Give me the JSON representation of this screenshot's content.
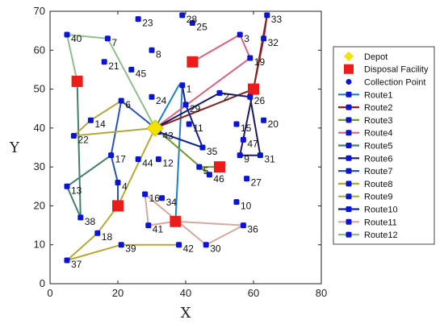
{
  "chart_data": {
    "type": "scatter",
    "xlabel": "X",
    "ylabel": "Y",
    "xlim": [
      0,
      80
    ],
    "ylim": [
      0,
      70
    ],
    "xticks": [
      "0",
      "20",
      "40",
      "60",
      "80"
    ],
    "yticks": [
      "0",
      "10",
      "20",
      "30",
      "40",
      "50",
      "60",
      "70"
    ],
    "grid": false,
    "legend_position": "right",
    "depot": {
      "label": "Depot",
      "x": 31,
      "y": 40,
      "color": "#f2e200"
    },
    "disposal_facilities": {
      "label": "Disposal Facility",
      "color": "#ee1b1b",
      "points": [
        [
          8,
          52
        ],
        [
          42,
          57
        ],
        [
          60,
          50
        ],
        [
          50,
          30
        ],
        [
          20,
          20
        ],
        [
          37,
          16
        ]
      ]
    },
    "collection_points": {
      "label": "Collection Point",
      "color": "#0a14d6",
      "points": [
        {
          "id": "1",
          "x": 39,
          "y": 51
        },
        {
          "id": "2",
          "x": 50,
          "y": 49
        },
        {
          "id": "3",
          "x": 56,
          "y": 64
        },
        {
          "id": "4",
          "x": 20,
          "y": 26
        },
        {
          "id": "5",
          "x": 44,
          "y": 30
        },
        {
          "id": "6",
          "x": 21,
          "y": 47
        },
        {
          "id": "7",
          "x": 17,
          "y": 63
        },
        {
          "id": "8",
          "x": 30,
          "y": 60
        },
        {
          "id": "9",
          "x": 56,
          "y": 33
        },
        {
          "id": "10",
          "x": 55,
          "y": 21
        },
        {
          "id": "11",
          "x": 41,
          "y": 41
        },
        {
          "id": "12",
          "x": 32,
          "y": 32
        },
        {
          "id": "13",
          "x": 5,
          "y": 25
        },
        {
          "id": "14",
          "x": 12,
          "y": 42
        },
        {
          "id": "15",
          "x": 55,
          "y": 41
        },
        {
          "id": "16",
          "x": 28,
          "y": 23
        },
        {
          "id": "17",
          "x": 18,
          "y": 33
        },
        {
          "id": "18",
          "x": 14,
          "y": 13
        },
        {
          "id": "19",
          "x": 59,
          "y": 58
        },
        {
          "id": "20",
          "x": 63,
          "y": 42
        },
        {
          "id": "21",
          "x": 16,
          "y": 57
        },
        {
          "id": "22",
          "x": 7,
          "y": 38
        },
        {
          "id": "23",
          "x": 26,
          "y": 68
        },
        {
          "id": "24",
          "x": 30,
          "y": 48
        },
        {
          "id": "25",
          "x": 42,
          "y": 67
        },
        {
          "id": "26",
          "x": 59,
          "y": 48
        },
        {
          "id": "27",
          "x": 58,
          "y": 27
        },
        {
          "id": "28",
          "x": 39,
          "y": 69
        },
        {
          "id": "29",
          "x": 40,
          "y": 46
        },
        {
          "id": "30",
          "x": 46,
          "y": 10
        },
        {
          "id": "31",
          "x": 62,
          "y": 33
        },
        {
          "id": "32",
          "x": 63,
          "y": 63
        },
        {
          "id": "33",
          "x": 64,
          "y": 69
        },
        {
          "id": "34",
          "x": 33,
          "y": 22
        },
        {
          "id": "35",
          "x": 45,
          "y": 35
        },
        {
          "id": "36",
          "x": 57,
          "y": 15
        },
        {
          "id": "37",
          "x": 5,
          "y": 6
        },
        {
          "id": "38",
          "x": 9,
          "y": 17
        },
        {
          "id": "39",
          "x": 21,
          "y": 10
        },
        {
          "id": "40",
          "x": 5,
          "y": 64
        },
        {
          "id": "41",
          "x": 29,
          "y": 15
        },
        {
          "id": "42",
          "x": 38,
          "y": 10
        },
        {
          "id": "43",
          "x": 32,
          "y": 39
        },
        {
          "id": "44",
          "x": 26,
          "y": 32
        },
        {
          "id": "45",
          "x": 24,
          "y": 55
        },
        {
          "id": "46",
          "x": 47,
          "y": 28
        },
        {
          "id": "47",
          "x": 57,
          "y": 37
        }
      ]
    },
    "series": [
      {
        "name": "Route1",
        "color": "#1f7fc6",
        "path": [
          [
            31,
            40
          ],
          [
            38,
            51
          ],
          [
            39,
            51
          ],
          [
            37,
            16
          ]
        ]
      },
      {
        "name": "Route2",
        "color": "#8a2020",
        "path": [
          [
            31,
            40
          ],
          [
            60,
            50
          ],
          [
            63,
            63
          ],
          [
            64,
            69
          ],
          [
            60,
            50
          ]
        ]
      },
      {
        "name": "Route3",
        "color": "#6f9a2a",
        "path": [
          [
            31,
            40
          ],
          [
            47,
            28
          ],
          [
            44,
            30
          ],
          [
            50,
            30
          ]
        ]
      },
      {
        "name": "Route4",
        "color": "#e0607e",
        "path": [
          [
            31,
            40
          ],
          [
            59,
            58
          ],
          [
            56,
            64
          ],
          [
            42,
            57
          ]
        ]
      },
      {
        "name": "Route5",
        "color": "#40806b",
        "path": [
          [
            8,
            52
          ],
          [
            9,
            17
          ],
          [
            5,
            25
          ],
          [
            18,
            33
          ]
        ]
      },
      {
        "name": "Route6",
        "color": "#1a1a60",
        "path": [
          [
            31,
            40
          ],
          [
            50,
            49
          ],
          [
            59,
            48
          ],
          [
            62,
            33
          ],
          [
            56,
            33
          ],
          [
            60,
            50
          ]
        ]
      },
      {
        "name": "Route7",
        "color": "#2a53b8",
        "path": [
          [
            31,
            40
          ],
          [
            21,
            47
          ],
          [
            18,
            33
          ],
          [
            20,
            26
          ],
          [
            20,
            20
          ]
        ]
      },
      {
        "name": "Route8",
        "color": "#b5aa30",
        "path": [
          [
            31,
            40
          ],
          [
            20,
            20
          ],
          [
            14,
            13
          ],
          [
            5,
            6
          ],
          [
            21,
            10
          ],
          [
            38,
            10
          ]
        ]
      },
      {
        "name": "Route9",
        "color": "#b0a83b",
        "path": [
          [
            31,
            40
          ],
          [
            7,
            38
          ],
          [
            12,
            42
          ],
          [
            21,
            47
          ]
        ]
      },
      {
        "name": "Route10",
        "color": "#12239a",
        "path": [
          [
            31,
            40
          ],
          [
            32,
            39
          ],
          [
            45,
            35
          ],
          [
            40,
            46
          ],
          [
            39,
            51
          ]
        ]
      },
      {
        "name": "Route11",
        "color": "#d4aaa0",
        "path": [
          [
            37,
            16
          ],
          [
            57,
            15
          ],
          [
            46,
            10
          ],
          [
            28,
            23
          ],
          [
            29,
            15
          ],
          [
            37,
            16
          ]
        ]
      },
      {
        "name": "Route12",
        "color": "#8fbf8c",
        "path": [
          [
            31,
            40
          ],
          [
            17,
            63
          ],
          [
            5,
            64
          ],
          [
            8,
            52
          ]
        ]
      }
    ]
  }
}
